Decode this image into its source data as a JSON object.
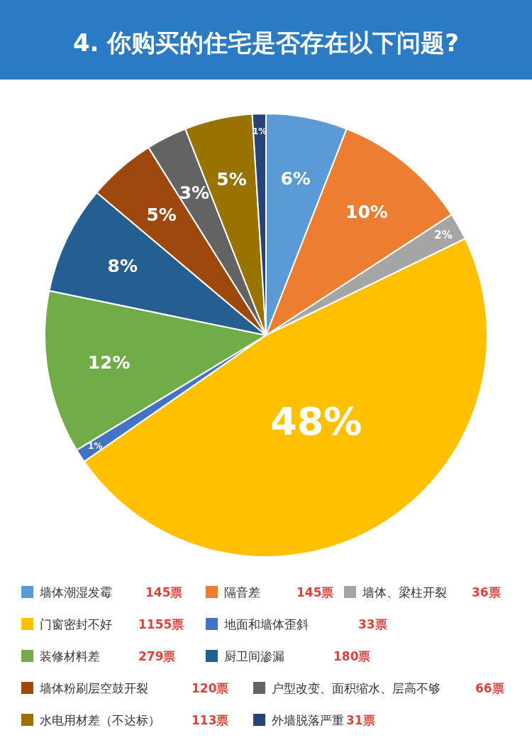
{
  "chart_data": {
    "type": "pie",
    "title": "4. 你购买的住宅是否存在以下问题?",
    "categories": [
      "墙体潮湿发霉",
      "隔音差",
      "墙体、梁柱开裂",
      "门窗密封不好",
      "地面和墙体歪斜",
      "装修材料差",
      "厨卫间渗漏",
      "墙体粉刷层空鼓开裂",
      "户型改变、面积缩水、层高不够",
      "水电用材差（不达标）",
      "外墙脱落严重"
    ],
    "values": [
      6,
      10,
      2,
      48,
      1,
      12,
      8,
      5,
      3,
      5,
      1
    ],
    "colors": [
      "#5b9bd5",
      "#ed7d31",
      "#a5a5a5",
      "#ffc000",
      "#4472c4",
      "#70ad47",
      "#255e91",
      "#9e480e",
      "#636363",
      "#997300",
      "#264478"
    ],
    "value_labels": [
      "6%",
      "10%",
      "2%",
      "48%",
      "1%",
      "12%",
      "8%",
      "5%",
      "3%",
      "5%",
      "1%"
    ],
    "annotations": [
      "145票",
      "145票",
      "36票",
      "1155票",
      "33票",
      "279票",
      "180票",
      "120票",
      "66票",
      "113票",
      "31票"
    ],
    "legend": "bottom"
  }
}
